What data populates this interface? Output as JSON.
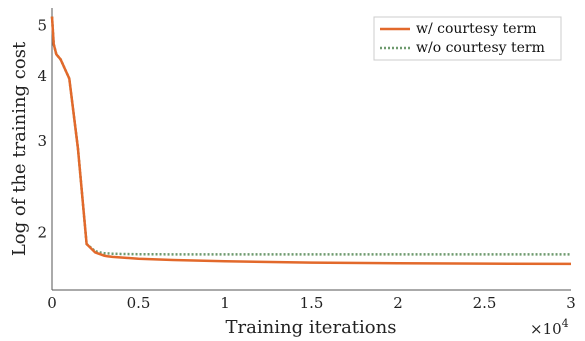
{
  "chart_data": {
    "type": "line",
    "xlabel": "Training iterations",
    "ylabel": "Log of the training cost",
    "x_multiplier": "×10",
    "x_multiplier_exp": "4",
    "xlim": [
      0,
      30000
    ],
    "ylim": [
      1.55,
      5.4
    ],
    "y_scale": "log",
    "x_ticks": [
      0,
      5000,
      10000,
      15000,
      20000,
      25000,
      30000
    ],
    "x_tick_labels": [
      "0",
      "0.5",
      "1",
      "1.5",
      "2",
      "2.5",
      "3"
    ],
    "y_ticks": [
      2,
      3,
      4,
      5
    ],
    "y_tick_labels": [
      "2",
      "3",
      "4",
      "5"
    ],
    "legend_position": "top-right",
    "grid": false,
    "series": [
      {
        "name": "w/ courtesy term",
        "color": "#e2692b",
        "style": "solid",
        "x": [
          0,
          100,
          250,
          500,
          1000,
          1500,
          2000,
          2500,
          2800,
          3000,
          3200,
          3500,
          4000,
          5000,
          7000,
          10000,
          15000,
          20000,
          25000,
          30000
        ],
        "y": [
          5.2,
          4.6,
          4.4,
          4.3,
          3.95,
          2.9,
          1.9,
          1.83,
          1.815,
          1.805,
          1.8,
          1.795,
          1.79,
          1.78,
          1.77,
          1.76,
          1.75,
          1.745,
          1.742,
          1.74
        ]
      },
      {
        "name": "w/o courtesy term",
        "color": "#6e9a6e",
        "style": "dotted",
        "x": [
          0,
          100,
          250,
          500,
          1000,
          1500,
          2000,
          2500,
          2800,
          3000,
          3500,
          4000,
          5000,
          7000,
          10000,
          15000,
          20000,
          25000,
          30000
        ],
        "y": [
          5.2,
          4.6,
          4.4,
          4.3,
          3.95,
          2.9,
          1.9,
          1.84,
          1.83,
          1.825,
          1.82,
          1.818,
          1.816,
          1.815,
          1.815,
          1.815,
          1.815,
          1.815,
          1.815
        ]
      }
    ]
  }
}
